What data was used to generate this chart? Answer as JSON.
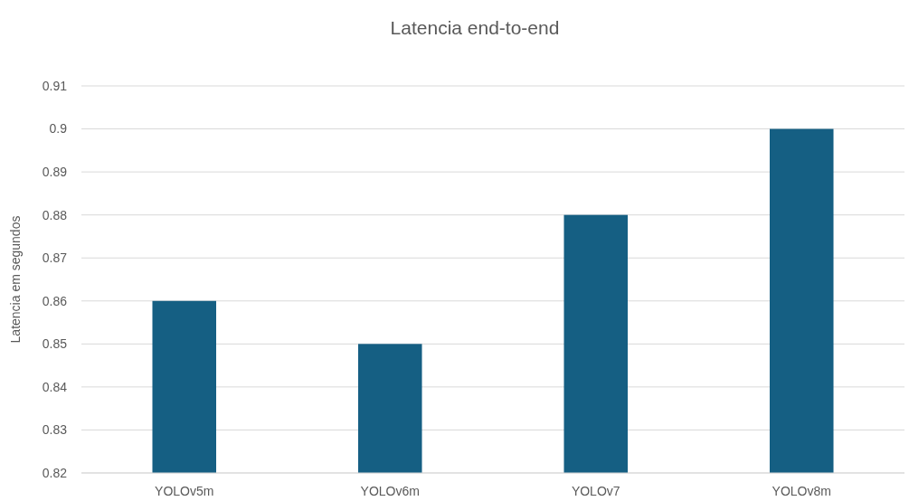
{
  "chart_data": {
    "type": "bar",
    "title": "Latencia end-to-end",
    "ylabel": "Latencia em segundos",
    "categories": [
      "YOLOv5m",
      "YOLOv6m",
      "YOLOv7",
      "YOLOv8m"
    ],
    "values": [
      0.86,
      0.85,
      0.88,
      0.9
    ],
    "color": "#155f83",
    "ylim": [
      0.82,
      0.91
    ],
    "yticks": [
      0.82,
      0.83,
      0.84,
      0.85,
      0.86,
      0.87,
      0.88,
      0.89,
      {
        "value": 0.9,
        "label": "0.9"
      },
      0.91
    ],
    "grid": "y"
  }
}
